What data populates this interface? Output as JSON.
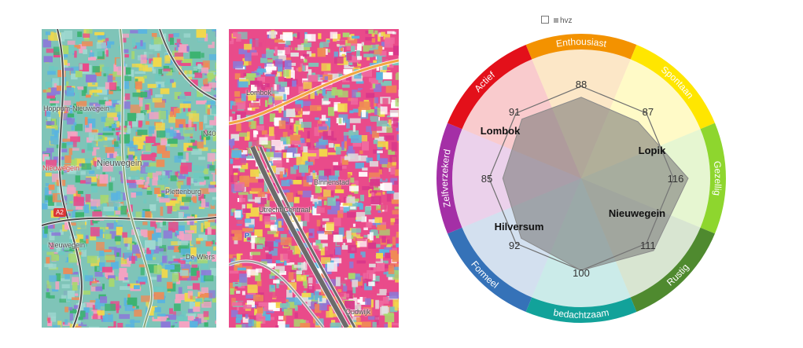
{
  "map_left": {
    "labels": {
      "nieuwegein": "Nieuwegein",
      "nieuwegein_red": "Nieuwegein",
      "nieuwegein_south": "Nieuwegein",
      "plettenburg": "Plettenburg",
      "de_wiers": "De Wiers",
      "jutphaas": "Hoppum-Nieuwegein",
      "road_a2": "A2",
      "road_n408": "N40"
    }
  },
  "map_right": {
    "labels": {
      "binnenstad": "Binnenstad",
      "centraal": "Utrecht Centraal",
      "lombok": "Lombok",
      "oudwijk": "Oudwijk",
      "p": "P"
    }
  },
  "legend": {
    "empty_series": "",
    "series_name": "hvz"
  },
  "chart_data": {
    "type": "radar",
    "segments": [
      {
        "label": "Enthousiast",
        "color": "#f39200"
      },
      {
        "label": "Spontaan",
        "color": "#ffe600"
      },
      {
        "label": "Gezellig",
        "color": "#8ed62e"
      },
      {
        "label": "Rustig",
        "color": "#4f8a2f"
      },
      {
        "label": "bedachtzaam",
        "color": "#12a29a"
      },
      {
        "label": "Formeel",
        "color": "#3572b8"
      },
      {
        "label": "Zelfverzekerd",
        "color": "#a42fa6"
      },
      {
        "label": "Actief",
        "color": "#e3101a"
      }
    ],
    "values": [
      88,
      87,
      116,
      111,
      100,
      92,
      85,
      91
    ],
    "value_labels": [
      "88",
      "87",
      "116",
      "111",
      "100",
      "92",
      "85",
      "91"
    ],
    "reference_value": 100,
    "place_labels": [
      "Lombok",
      "Lopik",
      "Nieuwegein",
      "Hilversum"
    ]
  }
}
